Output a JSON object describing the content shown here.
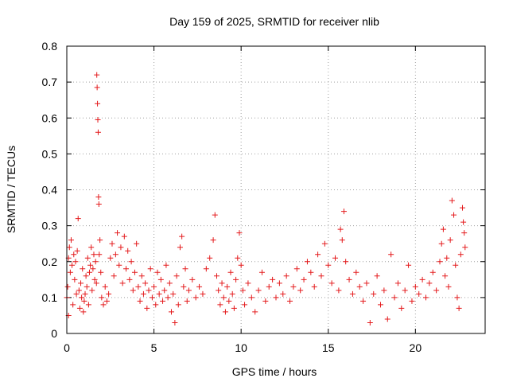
{
  "chart_data": {
    "type": "scatter",
    "title": "Day 159 of 2025, SRMTID for receiver nlib",
    "xlabel": "GPS time / hours",
    "ylabel": "SRMTID / TECUs",
    "xlim": [
      0,
      24
    ],
    "ylim": [
      0,
      0.8
    ],
    "x_ticks": [
      0,
      5,
      10,
      15,
      20
    ],
    "y_ticks": [
      0,
      0.1,
      0.2,
      0.3,
      0.4,
      0.5,
      0.6,
      0.7,
      0.8
    ],
    "x_tick_labels": [
      "0",
      "5",
      "10",
      "15",
      "20"
    ],
    "y_tick_labels": [
      "0",
      "0.1",
      "0.2",
      "0.3",
      "0.4",
      "0.5",
      "0.6",
      "0.7",
      "0.8"
    ],
    "grid": true,
    "marker": "plus",
    "color": "#e41a1c",
    "series": [
      {
        "name": "SRMTID",
        "points": [
          [
            0.0,
            0.1
          ],
          [
            0.05,
            0.13
          ],
          [
            0.1,
            0.21
          ],
          [
            0.1,
            0.05
          ],
          [
            0.15,
            0.24
          ],
          [
            0.2,
            0.17
          ],
          [
            0.25,
            0.26
          ],
          [
            0.3,
            0.19
          ],
          [
            0.35,
            0.08
          ],
          [
            0.4,
            0.22
          ],
          [
            0.45,
            0.15
          ],
          [
            0.5,
            0.2
          ],
          [
            0.55,
            0.11
          ],
          [
            0.6,
            0.23
          ],
          [
            0.65,
            0.32
          ],
          [
            0.7,
            0.12
          ],
          [
            0.75,
            0.07
          ],
          [
            0.8,
            0.14
          ],
          [
            0.85,
            0.1
          ],
          [
            0.9,
            0.18
          ],
          [
            0.95,
            0.06
          ],
          [
            1.0,
            0.09
          ],
          [
            1.05,
            0.11
          ],
          [
            1.1,
            0.16
          ],
          [
            1.15,
            0.13
          ],
          [
            1.2,
            0.21
          ],
          [
            1.25,
            0.08
          ],
          [
            1.3,
            0.17
          ],
          [
            1.35,
            0.19
          ],
          [
            1.4,
            0.24
          ],
          [
            1.45,
            0.12
          ],
          [
            1.5,
            0.18
          ],
          [
            1.55,
            0.22
          ],
          [
            1.6,
            0.15
          ],
          [
            1.65,
            0.2
          ],
          [
            1.7,
            0.14
          ],
          [
            1.72,
            0.72
          ],
          [
            1.74,
            0.685
          ],
          [
            1.76,
            0.64
          ],
          [
            1.78,
            0.595
          ],
          [
            1.8,
            0.56
          ],
          [
            1.82,
            0.38
          ],
          [
            1.84,
            0.36
          ],
          [
            1.86,
            0.22
          ],
          [
            1.9,
            0.26
          ],
          [
            1.95,
            0.17
          ],
          [
            2.0,
            0.1
          ],
          [
            2.1,
            0.08
          ],
          [
            2.2,
            0.13
          ],
          [
            2.3,
            0.09
          ],
          [
            2.4,
            0.11
          ],
          [
            2.5,
            0.21
          ],
          [
            2.6,
            0.25
          ],
          [
            2.7,
            0.16
          ],
          [
            2.8,
            0.22
          ],
          [
            2.9,
            0.28
          ],
          [
            3.0,
            0.19
          ],
          [
            3.1,
            0.24
          ],
          [
            3.2,
            0.14
          ],
          [
            3.3,
            0.27
          ],
          [
            3.4,
            0.18
          ],
          [
            3.5,
            0.23
          ],
          [
            3.6,
            0.15
          ],
          [
            3.7,
            0.2
          ],
          [
            3.8,
            0.12
          ],
          [
            3.9,
            0.17
          ],
          [
            4.0,
            0.25
          ],
          [
            4.1,
            0.13
          ],
          [
            4.2,
            0.09
          ],
          [
            4.3,
            0.16
          ],
          [
            4.4,
            0.11
          ],
          [
            4.5,
            0.14
          ],
          [
            4.6,
            0.07
          ],
          [
            4.7,
            0.12
          ],
          [
            4.8,
            0.18
          ],
          [
            4.9,
            0.1
          ],
          [
            5.0,
            0.13
          ],
          [
            5.1,
            0.08
          ],
          [
            5.2,
            0.17
          ],
          [
            5.3,
            0.11
          ],
          [
            5.4,
            0.15
          ],
          [
            5.5,
            0.09
          ],
          [
            5.6,
            0.12
          ],
          [
            5.7,
            0.19
          ],
          [
            5.8,
            0.1
          ],
          [
            5.9,
            0.14
          ],
          [
            6.0,
            0.06
          ],
          [
            6.1,
            0.11
          ],
          [
            6.2,
            0.03
          ],
          [
            6.3,
            0.16
          ],
          [
            6.4,
            0.08
          ],
          [
            6.5,
            0.24
          ],
          [
            6.6,
            0.27
          ],
          [
            6.7,
            0.13
          ],
          [
            6.8,
            0.18
          ],
          [
            6.9,
            0.09
          ],
          [
            7.0,
            0.12
          ],
          [
            7.2,
            0.15
          ],
          [
            7.4,
            0.1
          ],
          [
            7.6,
            0.13
          ],
          [
            7.8,
            0.11
          ],
          [
            8.0,
            0.18
          ],
          [
            8.2,
            0.21
          ],
          [
            8.4,
            0.26
          ],
          [
            8.5,
            0.33
          ],
          [
            8.6,
            0.16
          ],
          [
            8.7,
            0.12
          ],
          [
            8.8,
            0.08
          ],
          [
            8.9,
            0.14
          ],
          [
            9.0,
            0.1
          ],
          [
            9.1,
            0.06
          ],
          [
            9.2,
            0.13
          ],
          [
            9.3,
            0.09
          ],
          [
            9.4,
            0.17
          ],
          [
            9.5,
            0.11
          ],
          [
            9.6,
            0.07
          ],
          [
            9.7,
            0.15
          ],
          [
            9.8,
            0.21
          ],
          [
            9.9,
            0.28
          ],
          [
            10.0,
            0.19
          ],
          [
            10.1,
            0.12
          ],
          [
            10.2,
            0.08
          ],
          [
            10.4,
            0.14
          ],
          [
            10.6,
            0.1
          ],
          [
            10.8,
            0.06
          ],
          [
            11.0,
            0.12
          ],
          [
            11.2,
            0.17
          ],
          [
            11.4,
            0.09
          ],
          [
            11.6,
            0.13
          ],
          [
            11.8,
            0.15
          ],
          [
            12.0,
            0.1
          ],
          [
            12.2,
            0.14
          ],
          [
            12.4,
            0.11
          ],
          [
            12.6,
            0.16
          ],
          [
            12.8,
            0.09
          ],
          [
            13.0,
            0.13
          ],
          [
            13.2,
            0.18
          ],
          [
            13.4,
            0.12
          ],
          [
            13.6,
            0.15
          ],
          [
            13.8,
            0.2
          ],
          [
            14.0,
            0.17
          ],
          [
            14.2,
            0.13
          ],
          [
            14.4,
            0.22
          ],
          [
            14.6,
            0.16
          ],
          [
            14.8,
            0.25
          ],
          [
            15.0,
            0.19
          ],
          [
            15.2,
            0.14
          ],
          [
            15.4,
            0.21
          ],
          [
            15.6,
            0.12
          ],
          [
            15.7,
            0.29
          ],
          [
            15.8,
            0.26
          ],
          [
            15.9,
            0.34
          ],
          [
            16.0,
            0.2
          ],
          [
            16.2,
            0.15
          ],
          [
            16.4,
            0.11
          ],
          [
            16.6,
            0.17
          ],
          [
            16.8,
            0.13
          ],
          [
            17.0,
            0.09
          ],
          [
            17.2,
            0.14
          ],
          [
            17.4,
            0.03
          ],
          [
            17.6,
            0.11
          ],
          [
            17.8,
            0.16
          ],
          [
            18.0,
            0.08
          ],
          [
            18.2,
            0.12
          ],
          [
            18.4,
            0.04
          ],
          [
            18.6,
            0.22
          ],
          [
            18.8,
            0.1
          ],
          [
            19.0,
            0.14
          ],
          [
            19.2,
            0.07
          ],
          [
            19.4,
            0.12
          ],
          [
            19.6,
            0.19
          ],
          [
            19.8,
            0.09
          ],
          [
            20.0,
            0.13
          ],
          [
            20.2,
            0.11
          ],
          [
            20.4,
            0.15
          ],
          [
            20.6,
            0.1
          ],
          [
            20.8,
            0.14
          ],
          [
            21.0,
            0.17
          ],
          [
            21.2,
            0.12
          ],
          [
            21.4,
            0.2
          ],
          [
            21.5,
            0.25
          ],
          [
            21.6,
            0.29
          ],
          [
            21.7,
            0.16
          ],
          [
            21.8,
            0.21
          ],
          [
            21.9,
            0.13
          ],
          [
            22.0,
            0.26
          ],
          [
            22.1,
            0.37
          ],
          [
            22.2,
            0.33
          ],
          [
            22.3,
            0.19
          ],
          [
            22.4,
            0.1
          ],
          [
            22.5,
            0.07
          ],
          [
            22.6,
            0.22
          ],
          [
            22.7,
            0.35
          ],
          [
            22.75,
            0.31
          ],
          [
            22.8,
            0.28
          ],
          [
            22.85,
            0.24
          ]
        ]
      }
    ]
  }
}
